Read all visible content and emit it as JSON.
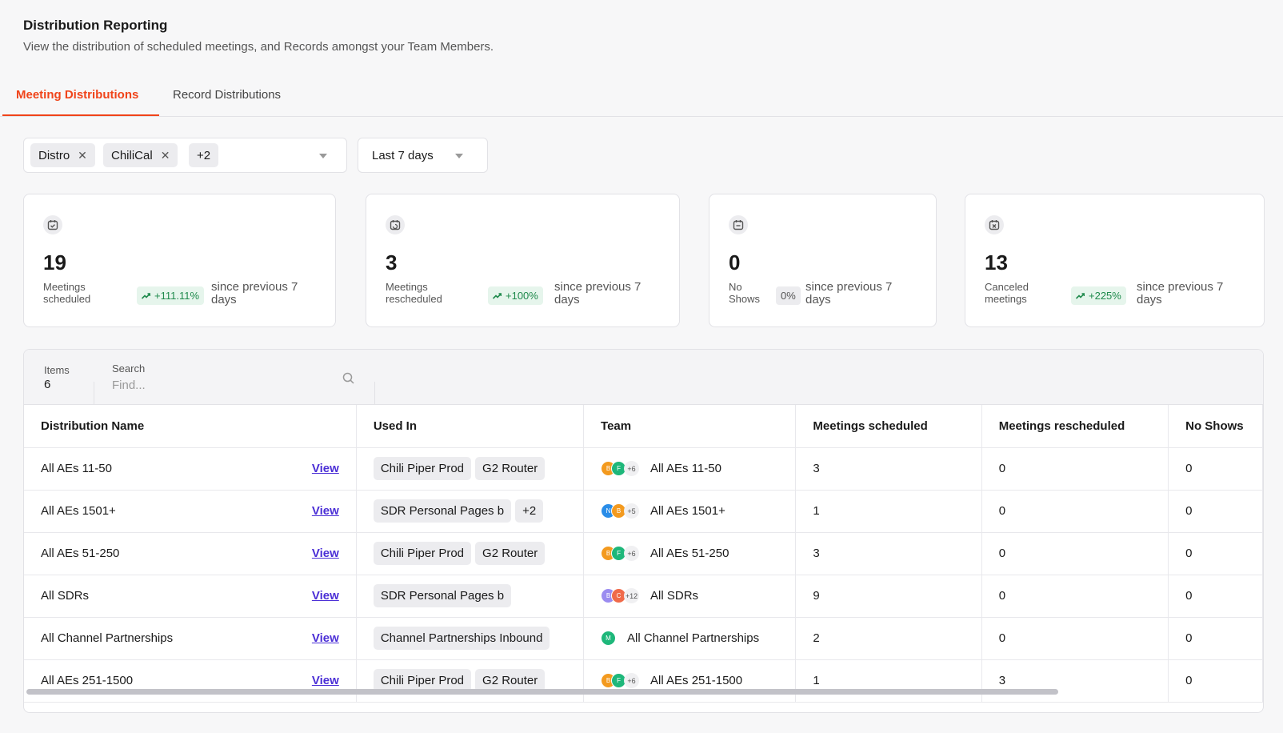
{
  "header": {
    "title": "Distribution Reporting",
    "subtitle": "View the distribution of scheduled meetings, and Records amongst your Team Members."
  },
  "tabs": [
    {
      "label": "Meeting Distributions",
      "active": true
    },
    {
      "label": "Record Distributions",
      "active": false
    }
  ],
  "filters": {
    "chips": [
      "Distro",
      "ChiliCal"
    ],
    "more": "+2",
    "date_range": "Last 7 days"
  },
  "cards": [
    {
      "icon": "calendar-check-icon",
      "value": "19",
      "label_line1": "Meetings",
      "label_line2": "scheduled",
      "trend": "+111.11%",
      "since_line1": "since previous 7",
      "since_line2": "days"
    },
    {
      "icon": "calendar-refresh-icon",
      "value": "3",
      "label_line1": "Meetings",
      "label_line2": "rescheduled",
      "trend": "+100%",
      "since_line1": "since previous 7",
      "since_line2": "days"
    },
    {
      "icon": "calendar-noshow-icon",
      "value": "0",
      "label_line1": "No",
      "label_line2": "Shows",
      "trend": "0%",
      "since_line1": "since previous 7",
      "since_line2": "days"
    },
    {
      "icon": "calendar-cancel-icon",
      "value": "13",
      "label_line1": "Canceled",
      "label_line2": "meetings",
      "trend": "+225%",
      "since_line1": "since previous 7",
      "since_line2": "days"
    }
  ],
  "table": {
    "items_label": "Items",
    "items_count": "6",
    "search_label": "Search",
    "search_placeholder": "Find...",
    "columns": [
      "Distribution Name",
      "Used In",
      "Team",
      "Meetings scheduled",
      "Meetings rescheduled",
      "No Shows"
    ],
    "view_label": "View",
    "rows": [
      {
        "name": "All AEs 11-50",
        "used_in": [
          "Chili Piper Prod",
          "G2 Router"
        ],
        "avatars": [
          "B",
          "F"
        ],
        "more": "+6",
        "team": "All AEs 11-50",
        "scheduled": "3",
        "rescheduled": "0",
        "no_shows": "0"
      },
      {
        "name": "All AEs 1501+",
        "used_in": [
          "SDR Personal Pages b",
          "+2"
        ],
        "avatars": [
          "N",
          "B"
        ],
        "more": "+5",
        "team": "All AEs 1501+",
        "scheduled": "1",
        "rescheduled": "0",
        "no_shows": "0"
      },
      {
        "name": "All AEs 51-250",
        "used_in": [
          "Chili Piper Prod",
          "G2 Router"
        ],
        "avatars": [
          "B",
          "F"
        ],
        "more": "+6",
        "team": "All AEs 51-250",
        "scheduled": "3",
        "rescheduled": "0",
        "no_shows": "0"
      },
      {
        "name": "All SDRs",
        "used_in": [
          "SDR Personal Pages b"
        ],
        "avatars": [
          "B",
          "C"
        ],
        "more": "+12",
        "team": "All SDRs",
        "scheduled": "9",
        "rescheduled": "0",
        "no_shows": "0"
      },
      {
        "name": "All Channel Partnerships",
        "used_in": [
          "Channel Partnerships Inbound"
        ],
        "avatars": [
          "M"
        ],
        "more": "",
        "team": "All Channel Partnerships",
        "scheduled": "2",
        "rescheduled": "0",
        "no_shows": "0"
      },
      {
        "name": "All AEs 251-1500",
        "used_in": [
          "Chili Piper Prod",
          "G2 Router"
        ],
        "avatars": [
          "B",
          "F"
        ],
        "more": "+6",
        "team": "All AEs 251-1500",
        "scheduled": "1",
        "rescheduled": "3",
        "no_shows": "0"
      }
    ]
  },
  "colors": {
    "accent": "#f0441a",
    "link": "#4b2fd6",
    "trend_positive": "#1f8a4c",
    "avatar_B": "#f39a1f",
    "avatar_F": "#1eb77a",
    "avatar_N": "#2a8de8",
    "avatar_C": "#f06a4a",
    "avatar_B_purple": "#9b8cf0",
    "avatar_M": "#1eb77a"
  }
}
